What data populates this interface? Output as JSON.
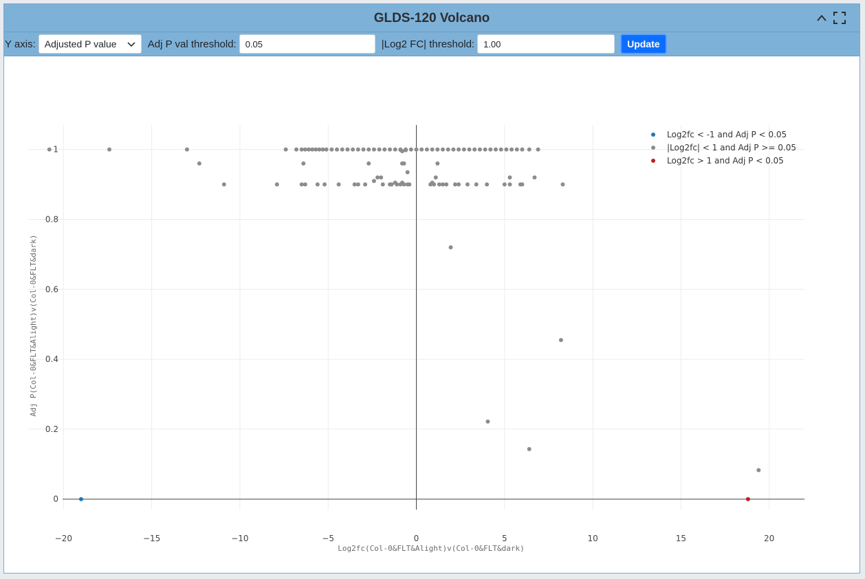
{
  "panel": {
    "title": "GLDS-120 Volcano",
    "collapse_icon": "chevron-up-icon",
    "expand_icon": "fullscreen-icon"
  },
  "controls": {
    "y_axis_label": "Y axis:",
    "y_axis_value": "Adjusted P value",
    "p_threshold_label": "Adj P val threshold:",
    "p_threshold_value": "0.05",
    "fc_threshold_label": "|Log2 FC| threshold:",
    "fc_threshold_value": "1.00",
    "update_label": "Update"
  },
  "colors": {
    "down": "#1f77b4",
    "ns": "#8c8c8c",
    "up": "#c21d1d",
    "header": "#7eb1d8",
    "button": "#0d6efd"
  },
  "chart_data": {
    "type": "scatter",
    "xlabel": "Log2fc(Col-0&FLT&Alight)v(Col-0&FLT&dark)",
    "ylabel": "Adj P(Col-0&FLT&Alight)v(Col-0&FLT&dark)",
    "xlim": [
      -22,
      22
    ],
    "ylim": [
      -0.03,
      1.07
    ],
    "x_ticks": [
      -20,
      -15,
      -10,
      -5,
      0,
      5,
      10,
      15,
      20
    ],
    "x_tick_labels": [
      "−20",
      "−15",
      "−10",
      "−5",
      "0",
      "5",
      "10",
      "15",
      "20"
    ],
    "y_ticks": [
      0,
      0.2,
      0.4,
      0.6,
      0.8,
      1
    ],
    "y_tick_labels": [
      "0",
      "0.2",
      "0.4",
      "0.6",
      "0.8",
      "1"
    ],
    "grid": true,
    "legend_position": "top-right",
    "series": [
      {
        "name": "Log2fc < -1 and Adj P < 0.05",
        "color": "#1f77b4",
        "points": [
          [
            -19.0,
            0.0
          ]
        ]
      },
      {
        "name": "|Log2fc| < 1 and Adj P >= 0.05",
        "color": "#8c8c8c",
        "points": [
          [
            -20.8,
            1.0
          ],
          [
            -17.4,
            1.0
          ],
          [
            -13.0,
            1.0
          ],
          [
            -7.4,
            1.0
          ],
          [
            -6.8,
            1.0
          ],
          [
            -6.5,
            1.0
          ],
          [
            -6.3,
            1.0
          ],
          [
            -6.1,
            1.0
          ],
          [
            -5.9,
            1.0
          ],
          [
            -5.7,
            1.0
          ],
          [
            -5.5,
            1.0
          ],
          [
            -5.3,
            1.0
          ],
          [
            -5.1,
            1.0
          ],
          [
            -4.8,
            1.0
          ],
          [
            -4.5,
            1.0
          ],
          [
            -4.2,
            1.0
          ],
          [
            -3.9,
            1.0
          ],
          [
            -3.6,
            1.0
          ],
          [
            -3.3,
            1.0
          ],
          [
            -3.0,
            1.0
          ],
          [
            -2.7,
            1.0
          ],
          [
            -2.4,
            1.0
          ],
          [
            -2.1,
            1.0
          ],
          [
            -1.8,
            1.0
          ],
          [
            -1.5,
            1.0
          ],
          [
            -1.2,
            1.0
          ],
          [
            -0.9,
            1.0
          ],
          [
            -0.6,
            1.0
          ],
          [
            -0.3,
            1.0
          ],
          [
            0.0,
            1.0
          ],
          [
            0.3,
            1.0
          ],
          [
            0.6,
            1.0
          ],
          [
            0.9,
            1.0
          ],
          [
            1.2,
            1.0
          ],
          [
            1.5,
            1.0
          ],
          [
            1.8,
            1.0
          ],
          [
            2.1,
            1.0
          ],
          [
            2.4,
            1.0
          ],
          [
            2.7,
            1.0
          ],
          [
            3.0,
            1.0
          ],
          [
            3.3,
            1.0
          ],
          [
            3.6,
            1.0
          ],
          [
            3.9,
            1.0
          ],
          [
            4.2,
            1.0
          ],
          [
            4.5,
            1.0
          ],
          [
            4.8,
            1.0
          ],
          [
            5.1,
            1.0
          ],
          [
            5.4,
            1.0
          ],
          [
            5.7,
            1.0
          ],
          [
            6.0,
            1.0
          ],
          [
            6.4,
            1.0
          ],
          [
            6.9,
            1.0
          ],
          [
            -0.9,
            0.999
          ],
          [
            -0.6,
            0.998
          ],
          [
            -0.8,
            0.995
          ],
          [
            -12.3,
            0.96
          ],
          [
            -6.4,
            0.96
          ],
          [
            -2.7,
            0.96
          ],
          [
            -0.8,
            0.96
          ],
          [
            -0.7,
            0.96
          ],
          [
            1.2,
            0.96
          ],
          [
            -0.5,
            0.935
          ],
          [
            -2.2,
            0.92
          ],
          [
            -2.0,
            0.92
          ],
          [
            1.1,
            0.92
          ],
          [
            5.3,
            0.92
          ],
          [
            6.7,
            0.92
          ],
          [
            -2.4,
            0.91
          ],
          [
            -1.2,
            0.905
          ],
          [
            -0.8,
            0.905
          ],
          [
            0.9,
            0.905
          ],
          [
            -10.9,
            0.9
          ],
          [
            -7.9,
            0.9
          ],
          [
            -6.5,
            0.9
          ],
          [
            -6.3,
            0.9
          ],
          [
            -5.6,
            0.9
          ],
          [
            -5.2,
            0.9
          ],
          [
            -4.4,
            0.9
          ],
          [
            -3.5,
            0.9
          ],
          [
            -3.3,
            0.9
          ],
          [
            -2.9,
            0.9
          ],
          [
            -1.9,
            0.9
          ],
          [
            -1.5,
            0.9
          ],
          [
            -1.4,
            0.9
          ],
          [
            -1.1,
            0.9
          ],
          [
            -0.9,
            0.9
          ],
          [
            -0.7,
            0.9
          ],
          [
            -0.5,
            0.9
          ],
          [
            -0.4,
            0.9
          ],
          [
            0.8,
            0.9
          ],
          [
            1.0,
            0.9
          ],
          [
            1.3,
            0.9
          ],
          [
            1.5,
            0.9
          ],
          [
            1.7,
            0.9
          ],
          [
            2.2,
            0.9
          ],
          [
            2.4,
            0.9
          ],
          [
            2.9,
            0.9
          ],
          [
            3.4,
            0.9
          ],
          [
            4.0,
            0.9
          ],
          [
            5.0,
            0.9
          ],
          [
            5.3,
            0.9
          ],
          [
            5.9,
            0.9
          ],
          [
            6.0,
            0.9
          ],
          [
            8.3,
            0.9
          ],
          [
            1.95,
            0.72
          ],
          [
            8.2,
            0.455
          ],
          [
            4.05,
            0.222
          ],
          [
            6.4,
            0.143
          ],
          [
            19.4,
            0.083
          ]
        ]
      },
      {
        "name": "Log2fc > 1 and Adj P < 0.05",
        "color": "#c21d1d",
        "points": [
          [
            18.8,
            0.0
          ]
        ]
      }
    ]
  }
}
